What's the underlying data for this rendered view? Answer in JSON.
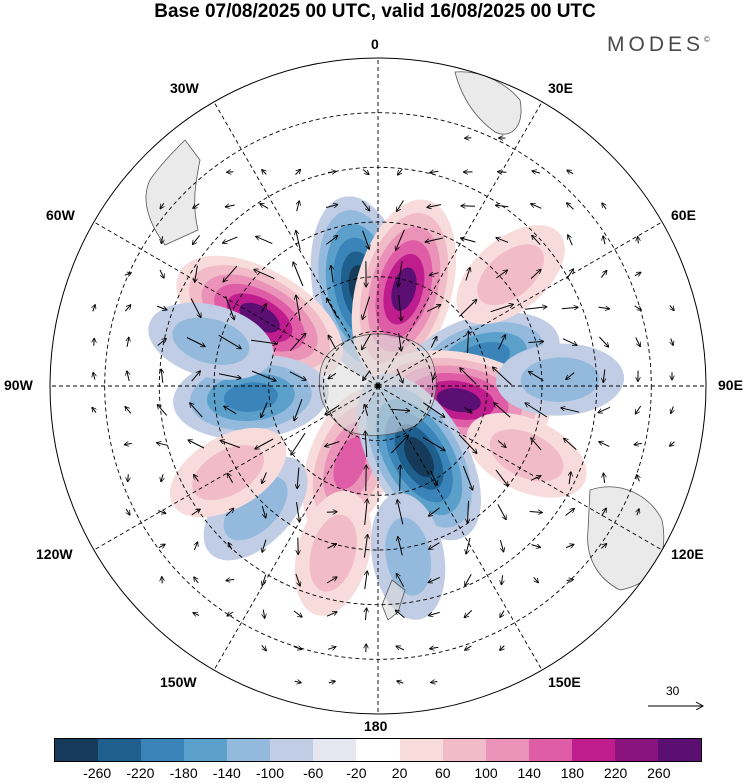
{
  "title": "Base 07/08/2025 00 UTC, valid 16/08/2025 00 UTC",
  "brand": "MODES",
  "brand_mark": "©",
  "longitude_labels": {
    "lon_0": "0",
    "lon_30e": "30E",
    "lon_60e": "60E",
    "lon_90e": "90E",
    "lon_120e": "120E",
    "lon_150e": "150E",
    "lon_180": "180",
    "lon_150w": "150W",
    "lon_120w": "120W",
    "lon_90w": "90W",
    "lon_60w": "60W",
    "lon_30w": "30W"
  },
  "reference_vector": {
    "value": "30"
  },
  "colorbar": {
    "colors": [
      "#163a59",
      "#1e5f8e",
      "#3b84b9",
      "#5b9fcb",
      "#93b9dc",
      "#c1cde4",
      "#e6e6f0",
      "#ffffff",
      "#f8dcdc",
      "#f1bcc8",
      "#eb92b8",
      "#df5ca6",
      "#bf1d8d",
      "#8a137f",
      "#5c0f73"
    ],
    "ticks": [
      "-260",
      "-220",
      "-180",
      "-140",
      "-100",
      "-60",
      "-20",
      "20",
      "60",
      "100",
      "140",
      "180",
      "220",
      "260"
    ]
  },
  "anomaly_cells": [
    {
      "sign": "neg",
      "strength": 3,
      "lon": -10,
      "colat": 22
    },
    {
      "sign": "pos",
      "strength": 3,
      "lon": 15,
      "colat": 22
    },
    {
      "sign": "pos",
      "strength": 3,
      "lon": -60,
      "colat": 30
    },
    {
      "sign": "neg",
      "strength": 2,
      "lon": 75,
      "colat": 24
    },
    {
      "sign": "neg",
      "strength": 2,
      "lon": -95,
      "colat": 28
    },
    {
      "sign": "pos",
      "strength": 3,
      "lon": 100,
      "colat": 18
    },
    {
      "sign": "pos",
      "strength": 2,
      "lon": -160,
      "colat": 18
    },
    {
      "sign": "neg",
      "strength": 3,
      "lon": 150,
      "colat": 18
    },
    {
      "sign": "neg",
      "strength": 1,
      "lon": -135,
      "colat": 38
    },
    {
      "sign": "pos",
      "strength": 1,
      "lon": -120,
      "colat": 38
    },
    {
      "sign": "pos",
      "strength": 1,
      "lon": -165,
      "colat": 38
    },
    {
      "sign": "neg",
      "strength": 1,
      "lon": 170,
      "colat": 38
    },
    {
      "sign": "pos",
      "strength": 1,
      "lon": 50,
      "colat": 38
    },
    {
      "sign": "neg",
      "strength": 1,
      "lon": 88,
      "colat": 40
    },
    {
      "sign": "neg",
      "strength": 1,
      "lon": -75,
      "colat": 38
    },
    {
      "sign": "pos",
      "strength": 1,
      "lon": 115,
      "colat": 36
    }
  ]
}
